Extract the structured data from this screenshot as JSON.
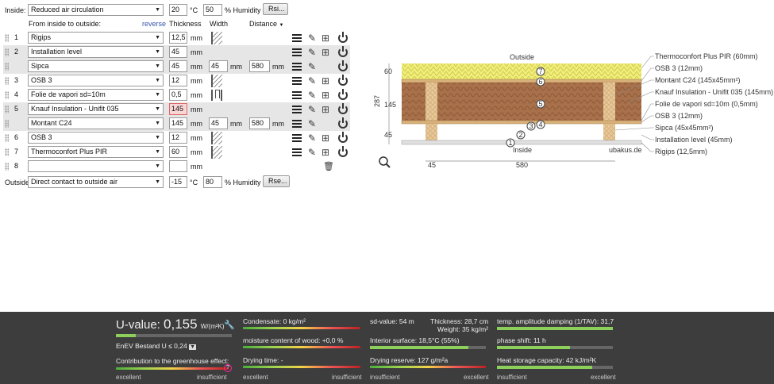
{
  "inside": {
    "label": "Inside:",
    "climate": "Reduced air circulation",
    "temp": "20",
    "temp_unit": "°C",
    "humidity": "50",
    "humidity_unit": "% Humidity",
    "btn": "Rsi..."
  },
  "header": {
    "from_label": "From inside to outside:",
    "reverse": "reverse",
    "thickness": "Thickness",
    "width": "Width",
    "distance": "Distance"
  },
  "units": {
    "mm": "mm"
  },
  "layers": [
    {
      "num": "1",
      "name": "Rigips",
      "thickness": "12,5"
    },
    {
      "num": "2",
      "name": "Installation level",
      "thickness": "45"
    },
    {
      "num": "",
      "name": "Sipca",
      "thickness": "45",
      "width": "45",
      "distance": "580"
    },
    {
      "num": "3",
      "name": "OSB 3",
      "thickness": "12"
    },
    {
      "num": "4",
      "name": "Folie de vapori sd=10m",
      "thickness": "0,5"
    },
    {
      "num": "5",
      "name": "Knauf Insulation - Unifit 035",
      "thickness": "145"
    },
    {
      "num": "",
      "name": "Montant C24",
      "thickness": "145",
      "width": "45",
      "distance": "580"
    },
    {
      "num": "6",
      "name": "OSB 3",
      "thickness": "12"
    },
    {
      "num": "7",
      "name": "Thermoconfort Plus PIR",
      "thickness": "60"
    },
    {
      "num": "8",
      "name": "",
      "thickness": ""
    }
  ],
  "outside": {
    "label": "Outside",
    "climate": "Direct contact to outside air",
    "temp": "-15",
    "temp_unit": "°C",
    "humidity": "80",
    "humidity_unit": "% Humidity",
    "btn": "Rse..."
  },
  "diagram": {
    "outside": "Outside",
    "inside": "Inside",
    "watermark": "ubakus.de",
    "dim_total": "287",
    "dim_60": "60",
    "dim_145": "145",
    "dim_45": "45",
    "dim_w45": "45",
    "dim_580": "580",
    "labels": [
      "Thermoconfort Plus PIR (60mm)",
      "OSB 3 (12mm)",
      "Montant C24 (145x45mm²)",
      "Knauf Insulation - Unifit 035 (145mm)",
      "Folie de vapori sd=10m (0,5mm)",
      "OSB 3 (12mm)",
      "Sipca (45x45mm²)",
      "Installation level (45mm)",
      "Rigips (12,5mm)"
    ],
    "markers": [
      "7",
      "6",
      "5",
      "4",
      "3",
      "2",
      "1"
    ]
  },
  "results": {
    "u_label": "U-value:",
    "u_value": "0,155",
    "u_unit": "W/(m²K)",
    "enev": "EnEV Bestand U ≤ 0,24",
    "greenhouse": "Contribution to the greenhouse effect:",
    "excellent": "excellent",
    "insufficient": "insufficient",
    "condensate": "Condensate: 0 kg/m²",
    "moisture": "moisture content of wood: +0,0 %",
    "drying_time": "Drying time: -",
    "sd": "sd-value: 54 m",
    "thickness": "Thickness: 28,7 cm",
    "weight": "Weight: 35 kg/m²",
    "interior": "Interior surface: 18,5°C (55%)",
    "drying_reserve": "Drying reserve: 127 g/m²a",
    "temp_amp": "temp. amplitude damping (1/TAV): 31,7",
    "phase": "phase shift: 11 h",
    "heat": "Heat storage capacity: 42 kJ/m²K",
    "colors": {
      "good": "#8ccf5a",
      "panel": "#3d3d3d"
    }
  }
}
